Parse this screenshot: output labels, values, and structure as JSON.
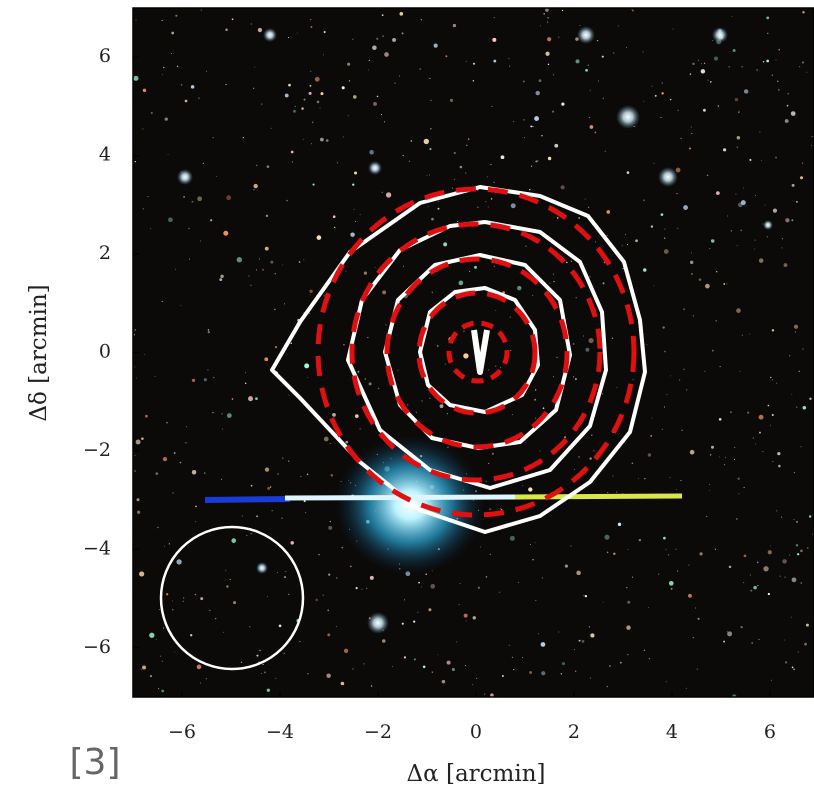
{
  "chart_data": {
    "type": "image",
    "xlabel": "Δα [arcmin]",
    "ylabel": "Δδ [arcmin]",
    "annotation": "[3]",
    "xlim": [
      -7,
      6.9
    ],
    "ylim": [
      -7,
      7
    ],
    "xticks": [
      {
        "value": -6,
        "label": "−6"
      },
      {
        "value": -4,
        "label": "−4"
      },
      {
        "value": -2,
        "label": "−2"
      },
      0,
      2,
      4,
      6
    ],
    "yticks": [
      {
        "value": -6,
        "label": "−6"
      },
      {
        "value": -4,
        "label": "−4"
      },
      {
        "value": -2,
        "label": "−2"
      },
      0,
      2,
      4,
      6
    ],
    "grid": false
  }
}
